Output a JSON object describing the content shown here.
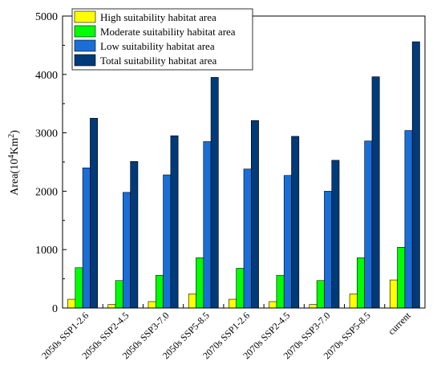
{
  "chart_data": {
    "type": "bar",
    "categories": [
      "2050s SSP1-2.6",
      "2050s SSP2-4.5",
      "2050s SSP3-7.0",
      "2050s SSP5-8.5",
      "2070s SSP1-2.6",
      "2070s SSP2-4.5",
      "2070s SSP3-7.0",
      "2070s SSP5-8.5",
      "current"
    ],
    "series": [
      {
        "name": "High suitability habitat area",
        "color": "#ffff00",
        "values": [
          150,
          60,
          110,
          240,
          150,
          110,
          60,
          240,
          480
        ]
      },
      {
        "name": "Moderate suitability habitat area",
        "color": "#00ff00",
        "values": [
          690,
          470,
          560,
          860,
          680,
          560,
          470,
          860,
          1040
        ]
      },
      {
        "name": "Low suitability habitat area",
        "color": "#1a6fd6",
        "values": [
          2400,
          1980,
          2280,
          2850,
          2380,
          2270,
          2000,
          2860,
          3040
        ]
      },
      {
        "name": "Total suitability habitat area",
        "color": "#003a78",
        "values": [
          3250,
          2510,
          2950,
          3950,
          3210,
          2940,
          2530,
          3960,
          4560
        ]
      }
    ],
    "ylabel": "Area(10⁴Km²)",
    "ylabel_parts": {
      "pre": "Area(10",
      "sup1": "4",
      "mid": "Km",
      "sup2": "2",
      "post": ")"
    },
    "xlabel": "",
    "ylim": [
      0,
      5000
    ],
    "yticks": [
      0,
      1000,
      2000,
      3000,
      4000,
      5000
    ],
    "grid": false,
    "legend_position": "top-left"
  }
}
